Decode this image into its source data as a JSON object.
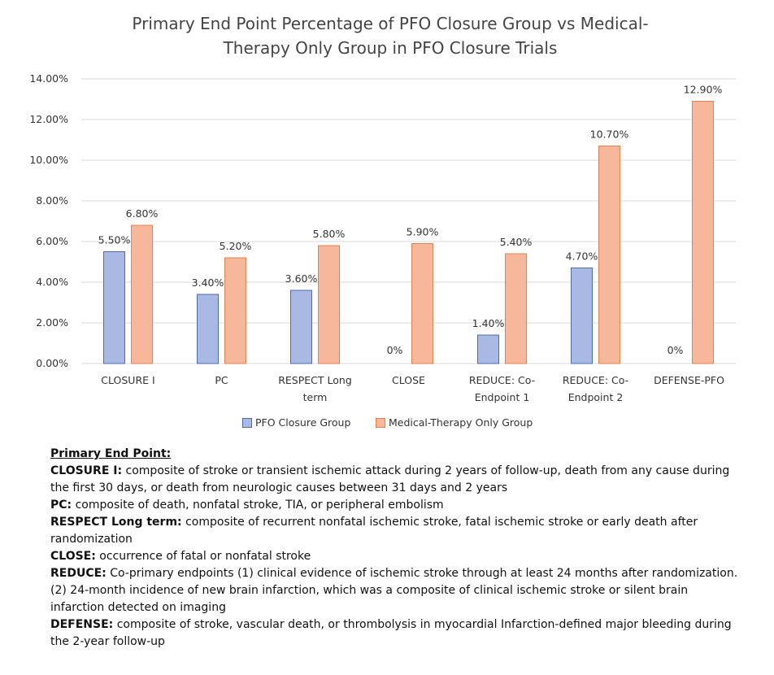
{
  "chart_data": {
    "type": "bar",
    "title": "Primary End Point Percentage of PFO Closure Group vs Medical-Therapy Only Group in PFO Closure Trials",
    "categories": [
      "CLOSURE I",
      "PC",
      "RESPECT Long term",
      "CLOSE",
      "REDUCE: Co-Endpoint 1",
      "REDUCE: Co-Endpoint 2",
      "DEFENSE-PFO"
    ],
    "series": [
      {
        "name": "PFO Closure Group",
        "color": "#a9b9e3",
        "values": [
          5.5,
          3.4,
          3.6,
          0,
          1.4,
          4.7,
          0
        ],
        "value_labels": [
          "5.50%",
          "3.40%",
          "3.60%",
          "0%",
          "1.40%",
          "4.70%",
          "0%"
        ]
      },
      {
        "name": "Medical-Therapy Only Group",
        "color": "#f7b79a",
        "values": [
          6.8,
          5.2,
          5.8,
          5.9,
          5.4,
          10.7,
          12.9
        ],
        "value_labels": [
          "6.80%",
          "5.20%",
          "5.80%",
          "5.90%",
          "5.40%",
          "10.70%",
          "12.90%"
        ]
      }
    ],
    "ylim": [
      0,
      14
    ],
    "yticks": [
      {
        "value": 0,
        "label": "0.00%"
      },
      {
        "value": 2,
        "label": "2.00%"
      },
      {
        "value": 4,
        "label": "4.00%"
      },
      {
        "value": 6,
        "label": "6.00%"
      },
      {
        "value": 8,
        "label": "8.00%"
      },
      {
        "value": 10,
        "label": "10.00%"
      },
      {
        "value": 12,
        "label": "12.00%"
      },
      {
        "value": 14,
        "label": "14.00%"
      }
    ],
    "grid": true,
    "legend": "bottom"
  },
  "notes": {
    "heading": "Primary End Point:",
    "items": [
      {
        "term": "CLOSURE I:",
        "text": "composite of stroke or transient ischemic attack during 2 years of follow-up, death from any cause during the first 30 days, or death from neurologic causes between 31 days and 2 years"
      },
      {
        "term": "PC:",
        "text": "composite of death, nonfatal stroke, TIA, or peripheral embolism"
      },
      {
        "term": "RESPECT Long term:",
        "text": "composite of recurrent nonfatal ischemic stroke, fatal ischemic stroke or early death after randomization"
      },
      {
        "term": "CLOSE:",
        "text": "occurrence of fatal or nonfatal stroke"
      },
      {
        "term": "REDUCE:",
        "text": "Co-primary endpoints (1) clinical evidence of ischemic stroke through at least 24 months after randomization. (2) 24-month incidence of new brain infarction, which was a composite of clinical ischemic stroke or silent brain infarction detected on imaging"
      },
      {
        "term": "DEFENSE:",
        "text": "composite of stroke, vascular death, or thrombolysis in myocardial Infarction-defined major bleeding during the 2-year follow-up"
      }
    ]
  }
}
